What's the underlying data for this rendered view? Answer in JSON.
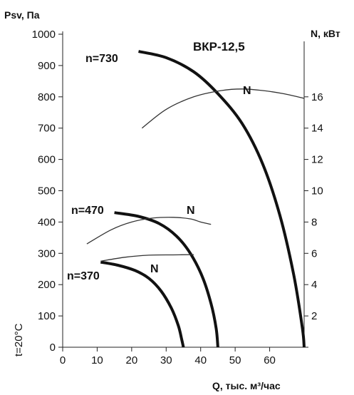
{
  "chart_data": {
    "type": "line",
    "title": "ВКР-12,5",
    "xlabel": "Q, тыс. м³/час",
    "ylabel": "Psv, Па",
    "y2label": "N, кВт",
    "xlim": [
      0,
      70
    ],
    "ylim": [
      0,
      1000
    ],
    "y2lim": [
      0,
      20
    ],
    "x_ticks": [
      "0",
      "10",
      "20",
      "30",
      "40",
      "50",
      "60"
    ],
    "y_ticks": [
      "0",
      "100",
      "200",
      "300",
      "400",
      "500",
      "600",
      "700",
      "800",
      "900",
      "1000"
    ],
    "y2_ticks": [
      "2",
      "4",
      "6",
      "8",
      "10",
      "12",
      "14",
      "16"
    ],
    "side_note": "t=20°C",
    "grid": false,
    "series": [
      {
        "name": "n=730",
        "kind": "pressure",
        "axis": "left",
        "points": [
          [
            22,
            945
          ],
          [
            30,
            925
          ],
          [
            38,
            880
          ],
          [
            45,
            810
          ],
          [
            52,
            715
          ],
          [
            58,
            585
          ],
          [
            63,
            420
          ],
          [
            67,
            230
          ],
          [
            69.5,
            60
          ],
          [
            70,
            0
          ]
        ]
      },
      {
        "name": "n=470",
        "kind": "pressure",
        "axis": "left",
        "points": [
          [
            15,
            430
          ],
          [
            22,
            418
          ],
          [
            28,
            395
          ],
          [
            33,
            355
          ],
          [
            37,
            300
          ],
          [
            40.5,
            225
          ],
          [
            43,
            140
          ],
          [
            44.5,
            60
          ],
          [
            45,
            0
          ]
        ]
      },
      {
        "name": "n=370",
        "kind": "pressure",
        "axis": "left",
        "points": [
          [
            11,
            272
          ],
          [
            16,
            262
          ],
          [
            21,
            245
          ],
          [
            25,
            220
          ],
          [
            28.5,
            180
          ],
          [
            31.5,
            125
          ],
          [
            33.5,
            70
          ],
          [
            34.5,
            25
          ],
          [
            35,
            0
          ]
        ]
      },
      {
        "name": "N",
        "kind": "power",
        "axis": "right",
        "rpm": "n=730",
        "points": [
          [
            23,
            14
          ],
          [
            30,
            15.2
          ],
          [
            38,
            16
          ],
          [
            46,
            16.4
          ],
          [
            52,
            16.5
          ],
          [
            58,
            16.4
          ],
          [
            64,
            16.2
          ],
          [
            70,
            15.9
          ]
        ]
      },
      {
        "name": "N",
        "kind": "power",
        "axis": "right",
        "rpm": "n=470",
        "points": [
          [
            7,
            6.6
          ],
          [
            14,
            7.5
          ],
          [
            20,
            8.0
          ],
          [
            26,
            8.25
          ],
          [
            32,
            8.3
          ],
          [
            37,
            8.2
          ],
          [
            40,
            8.0
          ],
          [
            43,
            7.85
          ]
        ]
      },
      {
        "name": "N",
        "kind": "power",
        "axis": "right",
        "rpm": "n=370",
        "points": [
          [
            11,
            5.5
          ],
          [
            18,
            5.75
          ],
          [
            25,
            5.88
          ],
          [
            32,
            5.9
          ],
          [
            38,
            5.92
          ]
        ]
      }
    ],
    "annotations": [
      {
        "text": "n=730",
        "series": 0
      },
      {
        "text": "n=470",
        "series": 1
      },
      {
        "text": "n=370",
        "series": 2
      },
      {
        "text": "N",
        "series": 3
      },
      {
        "text": "N",
        "series": 4
      },
      {
        "text": "N",
        "series": 5
      }
    ]
  }
}
